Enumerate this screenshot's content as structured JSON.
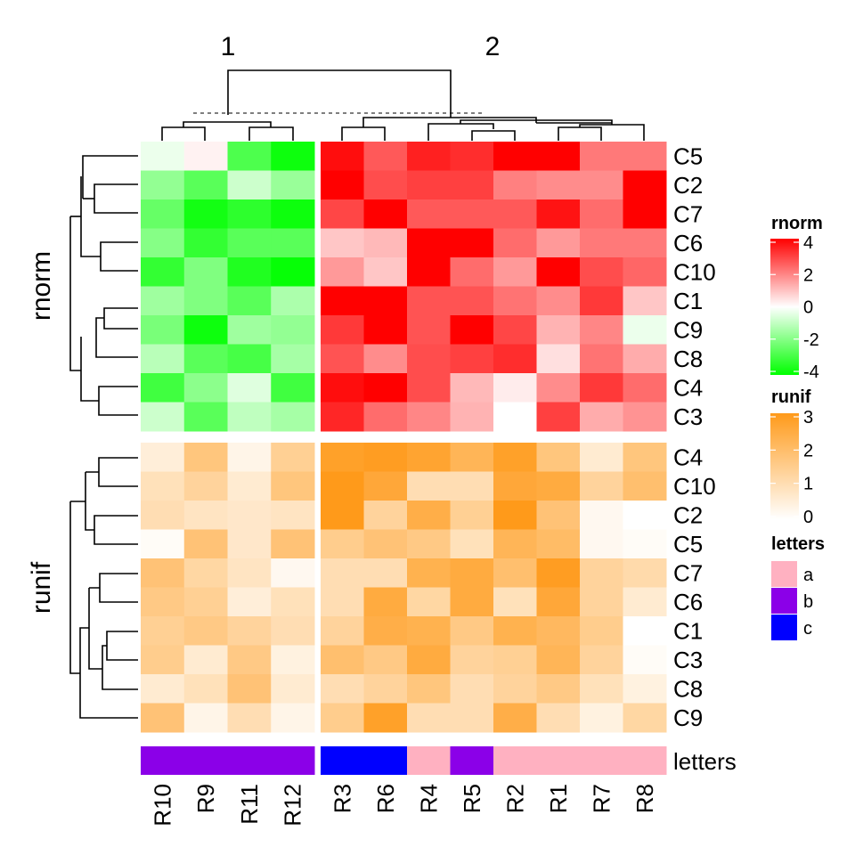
{
  "chart_data": {
    "type": "heatmap",
    "title": "",
    "column_split_titles": [
      "1",
      "2"
    ],
    "columns": {
      "group_1": [
        "R10",
        "R9",
        "R11",
        "R12"
      ],
      "group_2": [
        "R3",
        "R6",
        "R4",
        "R5",
        "R2",
        "R1",
        "R7",
        "R8"
      ]
    },
    "column_dendrogram": {
      "cut_line": "dashed",
      "clusters": 2
    },
    "heatmaps": [
      {
        "name": "rnorm",
        "row_title": "rnorm",
        "rows": [
          "C5",
          "C2",
          "C7",
          "C6",
          "C10",
          "C1",
          "C9",
          "C8",
          "C4",
          "C3"
        ],
        "color_scale": {
          "min": -4,
          "mid": 0,
          "max": 4,
          "low": "#00FF00",
          "mid_color": "#FFFFFF",
          "high": "#FF0000"
        },
        "values": [
          [
            -0.3,
            0.2,
            -2.8,
            -3.8,
            3.8,
            2.6,
            3.5,
            3.3,
            4.0,
            4.0,
            2.1,
            2.1
          ],
          [
            -1.7,
            -2.6,
            -0.8,
            -1.6,
            4.0,
            2.8,
            3.0,
            3.0,
            2.0,
            1.8,
            1.8,
            4.0
          ],
          [
            -2.4,
            -3.7,
            -3.3,
            -3.8,
            2.9,
            4.0,
            2.6,
            2.6,
            2.6,
            3.7,
            2.3,
            4.0
          ],
          [
            -1.9,
            -3.2,
            -2.6,
            -2.6,
            0.9,
            1.1,
            4.0,
            4.0,
            2.3,
            1.6,
            2.1,
            2.1
          ],
          [
            -3.2,
            -2.0,
            -3.5,
            -3.9,
            1.6,
            0.9,
            4.0,
            2.3,
            1.6,
            4.0,
            2.8,
            2.4
          ],
          [
            -1.5,
            -2.0,
            -2.6,
            -1.3,
            4.0,
            4.0,
            2.7,
            2.7,
            2.2,
            1.8,
            3.1,
            0.9
          ],
          [
            -2.1,
            -3.8,
            -1.5,
            -1.7,
            3.1,
            4.0,
            2.7,
            4.0,
            2.9,
            1.2,
            1.9,
            -0.3
          ],
          [
            -1.1,
            -2.6,
            -2.9,
            -1.4,
            2.7,
            1.8,
            2.8,
            3.0,
            3.3,
            0.5,
            2.2,
            1.3
          ],
          [
            -3.0,
            -1.8,
            -0.5,
            -3.0,
            3.8,
            4.0,
            2.8,
            1.1,
            0.3,
            1.8,
            3.1,
            2.3
          ],
          [
            -0.8,
            -2.6,
            -1.0,
            -1.4,
            3.4,
            2.3,
            1.9,
            1.2,
            0.0,
            3.0,
            1.3,
            1.7
          ]
        ]
      },
      {
        "name": "runif",
        "row_title": "runif",
        "rows": [
          "C4",
          "C10",
          "C2",
          "C5",
          "C7",
          "C6",
          "C1",
          "C3",
          "C8",
          "C9"
        ],
        "color_scale": {
          "min": 0,
          "max": 3,
          "low": "#FFFFFF",
          "high": "#FF9A1A"
        },
        "values": [
          [
            0.5,
            1.7,
            0.3,
            1.4,
            2.8,
            2.9,
            2.7,
            2.2,
            2.8,
            1.7,
            0.6,
            1.7
          ],
          [
            0.9,
            1.3,
            0.6,
            1.7,
            3.0,
            2.6,
            1.0,
            1.0,
            2.6,
            2.5,
            1.3,
            1.9
          ],
          [
            1.0,
            0.8,
            0.7,
            0.8,
            3.0,
            1.3,
            2.4,
            1.4,
            3.0,
            1.8,
            0.2,
            0.0
          ],
          [
            0.1,
            1.8,
            0.7,
            1.8,
            1.5,
            1.8,
            1.6,
            0.9,
            2.2,
            2.0,
            0.2,
            0.1
          ],
          [
            1.8,
            1.2,
            0.8,
            0.2,
            1.0,
            1.0,
            2.3,
            2.5,
            1.9,
            2.9,
            1.3,
            1.1
          ],
          [
            1.6,
            1.4,
            0.5,
            0.9,
            1.0,
            2.5,
            1.2,
            2.5,
            0.9,
            2.6,
            1.3,
            0.6
          ],
          [
            1.4,
            1.6,
            1.3,
            1.0,
            1.3,
            2.4,
            2.3,
            1.6,
            2.3,
            2.1,
            1.5,
            0.0
          ],
          [
            1.5,
            0.6,
            1.6,
            0.4,
            1.9,
            1.6,
            2.5,
            1.3,
            1.4,
            2.2,
            1.3,
            0.1
          ],
          [
            0.6,
            0.9,
            1.8,
            0.6,
            1.0,
            1.3,
            1.7,
            1.0,
            1.3,
            1.6,
            0.9,
            0.4
          ],
          [
            1.8,
            0.3,
            1.0,
            0.3,
            1.5,
            2.8,
            1.0,
            1.0,
            2.4,
            1.0,
            0.4,
            1.2
          ]
        ]
      }
    ],
    "annotation": {
      "name": "letters",
      "values": [
        "b",
        "b",
        "b",
        "b",
        "c",
        "c",
        "a",
        "b",
        "a",
        "a",
        "a",
        "a"
      ],
      "colors": {
        "a": "#FFB1C1",
        "b": "#8B00E8",
        "c": "#0000FF"
      }
    },
    "legends": {
      "rnorm": {
        "title": "rnorm",
        "ticks": [
          "4",
          "2",
          "0",
          "-2",
          "-4"
        ]
      },
      "runif": {
        "title": "runif",
        "ticks": [
          "3",
          "2",
          "1",
          "0"
        ]
      },
      "letters": {
        "title": "letters",
        "items": [
          "a",
          "b",
          "c"
        ]
      }
    }
  }
}
